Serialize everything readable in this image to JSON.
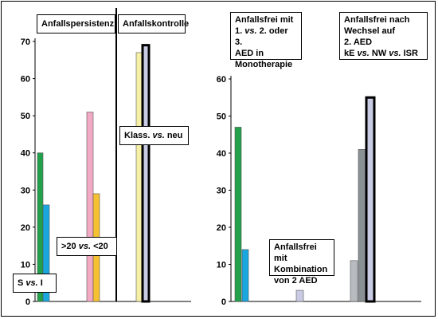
{
  "chart_data": [
    {
      "type": "bar",
      "ylim": [
        0,
        70
      ],
      "yticks": [
        0,
        10,
        20,
        30,
        40,
        50,
        60,
        70
      ],
      "groups": [
        {
          "label": "S vs. I",
          "bars": [
            {
              "value": 40,
              "color": "#22a04b"
            },
            {
              "value": 26,
              "color": "#1aa7e0"
            }
          ]
        },
        {
          "label": ">20 vs. <20",
          "bars": [
            {
              "value": 51,
              "color": "#f2a9c3"
            },
            {
              "value": 29,
              "color": "#f5c132"
            }
          ]
        },
        {
          "label": "Klass. vs. neu",
          "bars": [
            {
              "value": 67,
              "color": "#f6f0a6"
            },
            {
              "value": 69,
              "color": "#c8cbe3",
              "outlined": true
            }
          ]
        }
      ],
      "header_labels": [
        "Anfallspersistenz",
        "Anfallskontrolle"
      ]
    },
    {
      "type": "bar",
      "ylim": [
        0,
        60
      ],
      "yticks": [
        0,
        10,
        20,
        30,
        40,
        50,
        60
      ],
      "groups": [
        {
          "label": "Anfallsfrei mit 1. vs. 2. oder 3. AED in Monotherapie",
          "bars": [
            {
              "value": 47,
              "color": "#22a04b"
            },
            {
              "value": 14,
              "color": "#1aa7e0"
            }
          ]
        },
        {
          "label": "Anfallsfrei mit Kombination von 2 AED",
          "bars": [
            {
              "value": 3,
              "color": "#c8cbe3"
            }
          ]
        },
        {
          "label": "Anfallsfrei nach Wechsel auf 2. AED kE vs. NW vs. ISR",
          "bars": [
            {
              "value": 11,
              "color": "#b8bcc0"
            },
            {
              "value": 41,
              "color": "#8a9194"
            },
            {
              "value": 55,
              "color": "#c8cbe3",
              "outlined": true
            }
          ]
        }
      ]
    }
  ]
}
